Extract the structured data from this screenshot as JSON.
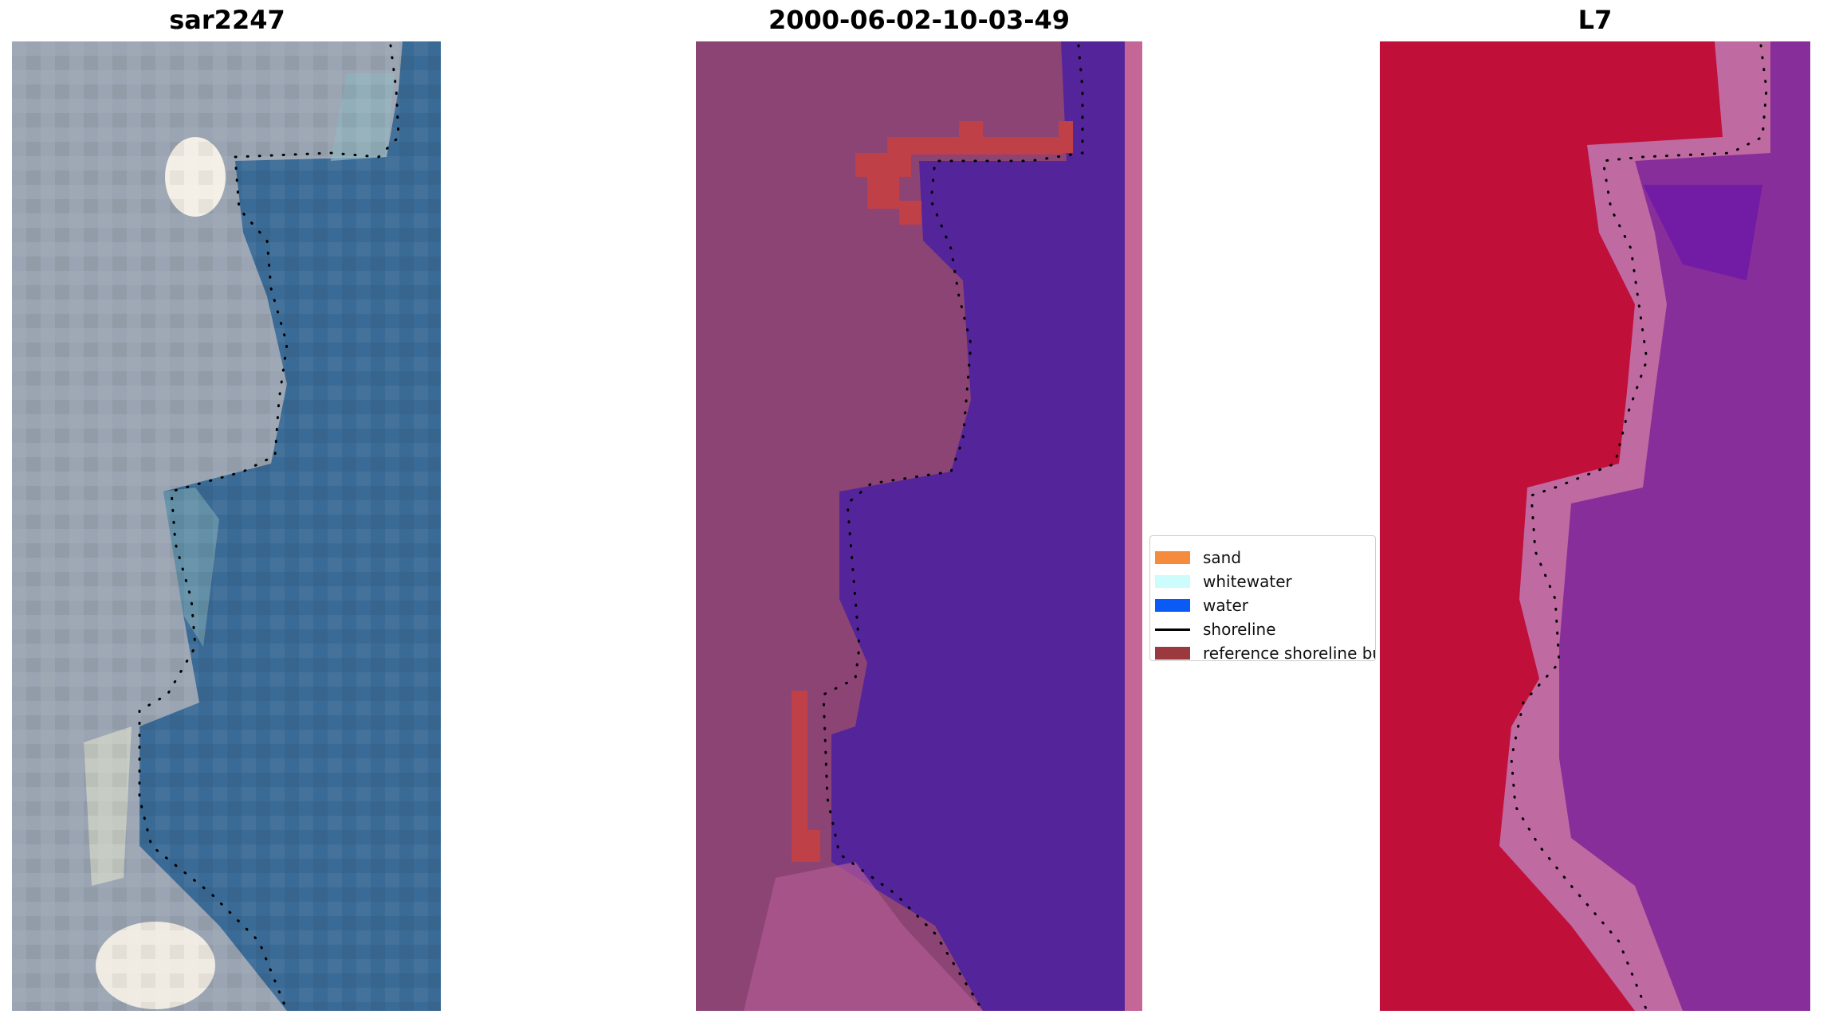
{
  "panels": [
    {
      "title": "sar2247"
    },
    {
      "title": "2000-06-02-10-03-49"
    },
    {
      "title": "L7"
    }
  ],
  "legend": {
    "items": [
      {
        "label": "sand",
        "color": "#f58b3c",
        "kind": "patch"
      },
      {
        "label": "whitewater",
        "color": "#ccfcfc",
        "kind": "patch"
      },
      {
        "label": "water",
        "color": "#0a5af5",
        "kind": "patch"
      },
      {
        "label": "shoreline",
        "color": "#000000",
        "kind": "line"
      },
      {
        "label": "reference shoreline buffer",
        "color": "#9a3a3e",
        "kind": "patch"
      }
    ]
  },
  "colors": {
    "rgb_land": "#9aa4b2",
    "rgb_water": "#3a6a96",
    "rgb_highlight": "#f3efe6",
    "classified_land": "#8c4474",
    "classified_water": "#54249a",
    "classified_buffer": "#c04048",
    "classified_edge_strip": "#c46696",
    "l7_land": "#c0103a",
    "l7_transition": "#c06aa2",
    "l7_water": "#882e9a"
  }
}
